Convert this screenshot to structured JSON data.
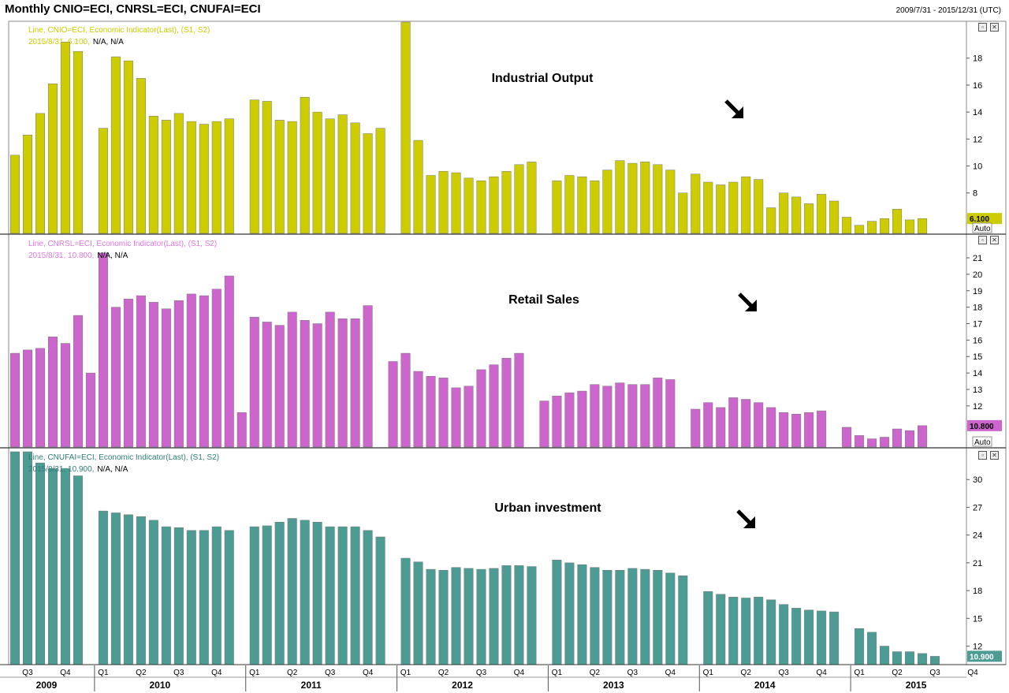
{
  "header": {
    "title": "Monthly CNIO=ECI, CNRSL=ECI, CNUFAI=ECI",
    "date_range": "2009/7/31 - 2015/12/31 (UTC)"
  },
  "colors": {
    "industrial": "#cccc00",
    "industrial_text": "#cccc00",
    "retail": "#cc66cc",
    "retail_text": "#dd77dd",
    "urban": "#4d9c94",
    "urban_text": "#2f7d75",
    "na_text": "#000000"
  },
  "chart_data": [
    {
      "type": "bar",
      "panel": "industrial",
      "annotation": "Industrial Output",
      "legend_line1": "Line, CNIO=ECI, Economic Indicator(Last), (S1, S2)",
      "legend_date_value": "2015/8/31, 6.100,",
      "legend_na": "N/A, N/A",
      "last_value_label": "6.100",
      "auto_label": "Auto",
      "ylim": [
        5,
        20.5
      ],
      "yticks": [
        8,
        10,
        12,
        14,
        16,
        18
      ],
      "values": [
        10.8,
        12.3,
        13.9,
        16.1,
        19.2,
        18.5,
        null,
        12.8,
        18.1,
        17.8,
        16.5,
        13.7,
        13.4,
        13.9,
        13.3,
        13.1,
        13.3,
        13.5,
        null,
        14.9,
        14.8,
        13.4,
        13.3,
        15.1,
        14.0,
        13.5,
        13.8,
        13.2,
        12.4,
        12.8,
        null,
        21.3,
        11.9,
        9.3,
        9.6,
        9.5,
        9.1,
        8.9,
        9.2,
        9.6,
        10.1,
        10.3,
        null,
        8.9,
        9.3,
        9.2,
        8.9,
        9.7,
        10.4,
        10.2,
        10.3,
        10.1,
        9.7,
        8.0,
        9.4,
        8.8,
        8.6,
        8.8,
        9.2,
        9.0,
        6.9,
        8.0,
        7.7,
        7.2,
        7.9,
        7.4,
        6.2,
        5.6,
        5.9,
        6.1,
        6.8,
        6.0,
        6.1
      ]
    },
    {
      "type": "bar",
      "panel": "retail",
      "annotation": "Retail Sales",
      "legend_line1": "Line, CNRSL=ECI, Economic Indicator(Last), (S1, S2)",
      "legend_date_value": "2015/8/31, 10.800,",
      "legend_na": "N/A, N/A",
      "last_value_label": "10.800",
      "auto_label": "Auto",
      "ylim": [
        9.5,
        22.2
      ],
      "yticks": [
        12,
        13,
        14,
        15,
        16,
        17,
        18,
        19,
        20,
        21
      ],
      "values": [
        15.2,
        15.4,
        15.5,
        16.2,
        15.8,
        17.5,
        14.0,
        21.3,
        18.0,
        18.5,
        18.7,
        18.3,
        17.9,
        18.4,
        18.8,
        18.7,
        19.1,
        19.9,
        11.6,
        17.4,
        17.1,
        16.9,
        17.7,
        17.2,
        17.0,
        17.7,
        17.3,
        17.3,
        18.1,
        null,
        14.7,
        15.2,
        14.1,
        13.8,
        13.7,
        13.1,
        13.2,
        14.2,
        14.5,
        14.9,
        15.2,
        null,
        12.3,
        12.6,
        12.8,
        12.9,
        13.3,
        13.2,
        13.4,
        13.3,
        13.3,
        13.7,
        13.6,
        null,
        11.8,
        12.2,
        11.9,
        12.5,
        12.4,
        12.2,
        11.9,
        11.6,
        11.5,
        11.6,
        11.7,
        null,
        10.7,
        10.2,
        10.0,
        10.1,
        10.6,
        10.5,
        10.8
      ]
    },
    {
      "type": "bar",
      "panel": "urban",
      "annotation": "Urban investment",
      "legend_line1": "Line, CNUFAI=ECI, Economic Indicator(Last), (S1, S2)",
      "legend_date_value": "2015/8/31, 10.900,",
      "legend_na": "N/A, N/A",
      "last_value_label": "10.900",
      "auto_label": "",
      "ylim": [
        10,
        33
      ],
      "yticks": [
        12,
        15,
        18,
        21,
        24,
        27,
        30
      ],
      "values": [
        33.0,
        33.0,
        31.8,
        31.2,
        31.2,
        30.4,
        null,
        26.6,
        26.4,
        26.2,
        26.0,
        25.6,
        24.9,
        24.8,
        24.5,
        24.5,
        24.9,
        24.5,
        null,
        24.9,
        25.0,
        25.4,
        25.8,
        25.6,
        25.4,
        24.9,
        24.9,
        24.9,
        24.5,
        23.8,
        null,
        21.5,
        21.1,
        20.3,
        20.2,
        20.5,
        20.4,
        20.3,
        20.4,
        20.7,
        20.7,
        20.6,
        null,
        21.3,
        21.0,
        20.8,
        20.5,
        20.2,
        20.2,
        20.4,
        20.3,
        20.2,
        19.9,
        19.6,
        null,
        17.9,
        17.6,
        17.3,
        17.2,
        17.3,
        17.0,
        16.5,
        16.1,
        15.9,
        15.8,
        15.7,
        null,
        13.9,
        13.5,
        12.0,
        11.4,
        11.4,
        11.2,
        10.9
      ]
    }
  ],
  "x_axis": {
    "quarters": [
      "Q3",
      "Q4",
      "Q1",
      "Q2",
      "Q3",
      "Q4",
      "Q1",
      "Q2",
      "Q3",
      "Q4",
      "Q1",
      "Q2",
      "Q3",
      "Q4",
      "Q1",
      "Q2",
      "Q3",
      "Q4",
      "Q1",
      "Q2",
      "Q3",
      "Q4",
      "Q1",
      "Q2",
      "Q3",
      "Q4"
    ],
    "years": [
      "2009",
      "2010",
      "2011",
      "2012",
      "2013",
      "2014",
      "2015"
    ]
  }
}
